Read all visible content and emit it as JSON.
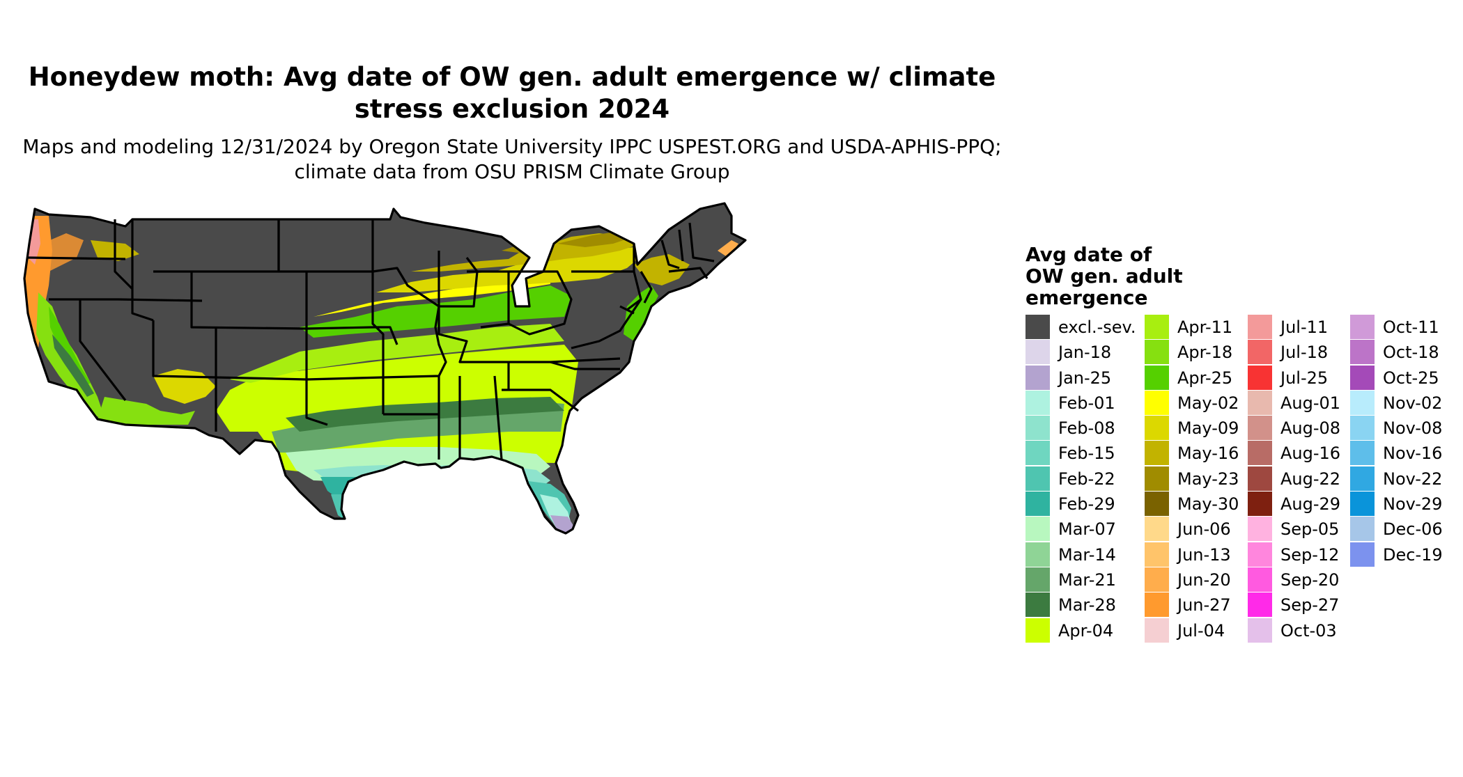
{
  "title": "Honeydew moth: Avg date of OW gen. adult emergence w/ climate stress exclusion 2024",
  "subtitle": "Maps and modeling 12/31/2024 by Oregon State University IPPC USPEST.ORG and USDA-APHIS-PPQ; climate data from OSU PRISM Climate Group",
  "legend": {
    "title_lines": [
      "Avg date of",
      "OW gen. adult",
      "emergence"
    ],
    "items": [
      {
        "label": "excl.-sev.",
        "color": "#4a4a4a"
      },
      {
        "label": "Jan-18",
        "color": "#ddd5ea"
      },
      {
        "label": "Jan-25",
        "color": "#b3a3cf"
      },
      {
        "label": "Feb-01",
        "color": "#aef2e0"
      },
      {
        "label": "Feb-08",
        "color": "#8ee3cd"
      },
      {
        "label": "Feb-15",
        "color": "#6fd6c0"
      },
      {
        "label": "Feb-22",
        "color": "#4fc5b0"
      },
      {
        "label": "Feb-29",
        "color": "#2fb3a0"
      },
      {
        "label": "Mar-07",
        "color": "#b8f7bf"
      },
      {
        "label": "Mar-14",
        "color": "#8fd496"
      },
      {
        "label": "Mar-21",
        "color": "#65a66a"
      },
      {
        "label": "Mar-28",
        "color": "#3c7b40"
      },
      {
        "label": "Apr-04",
        "color": "#ccff00"
      },
      {
        "label": "Apr-11",
        "color": "#a8ee10"
      },
      {
        "label": "Apr-18",
        "color": "#86e010"
      },
      {
        "label": "Apr-25",
        "color": "#55d000"
      },
      {
        "label": "May-02",
        "color": "#ffff00"
      },
      {
        "label": "May-09",
        "color": "#dcd800"
      },
      {
        "label": "May-16",
        "color": "#c2b300"
      },
      {
        "label": "May-23",
        "color": "#a08c00"
      },
      {
        "label": "May-30",
        "color": "#7a6200"
      },
      {
        "label": "Jun-06",
        "color": "#ffd98a"
      },
      {
        "label": "Jun-13",
        "color": "#ffc46a"
      },
      {
        "label": "Jun-20",
        "color": "#ffad4c"
      },
      {
        "label": "Jun-27",
        "color": "#ff9a2e"
      },
      {
        "label": "Jul-04",
        "color": "#f5cfd2"
      },
      {
        "label": "Jul-11",
        "color": "#f39a9a"
      },
      {
        "label": "Jul-18",
        "color": "#f26666"
      },
      {
        "label": "Jul-25",
        "color": "#f83333"
      },
      {
        "label": "Aug-01",
        "color": "#e8b9ae"
      },
      {
        "label": "Aug-08",
        "color": "#d2918a"
      },
      {
        "label": "Aug-16",
        "color": "#b86c66"
      },
      {
        "label": "Aug-22",
        "color": "#9e4840"
      },
      {
        "label": "Aug-29",
        "color": "#7e2010"
      },
      {
        "label": "Sep-05",
        "color": "#ffb2e0"
      },
      {
        "label": "Sep-12",
        "color": "#ff86dd"
      },
      {
        "label": "Sep-20",
        "color": "#ff5ae0"
      },
      {
        "label": "Sep-27",
        "color": "#ff2ae8"
      },
      {
        "label": "Oct-03",
        "color": "#e4c0ea"
      },
      {
        "label": "Oct-11",
        "color": "#d09ad8"
      },
      {
        "label": "Oct-18",
        "color": "#bc74c8"
      },
      {
        "label": "Oct-25",
        "color": "#a44ab8"
      },
      {
        "label": "Nov-02",
        "color": "#b8ecfc"
      },
      {
        "label": "Nov-08",
        "color": "#8ad4f2"
      },
      {
        "label": "Nov-16",
        "color": "#5ebeea"
      },
      {
        "label": "Nov-22",
        "color": "#30a8e2"
      },
      {
        "label": "Nov-29",
        "color": "#0a94da"
      },
      {
        "label": "Dec-06",
        "color": "#a6c6e8"
      },
      {
        "label": "Dec-19",
        "color": "#7c92ee"
      }
    ]
  }
}
